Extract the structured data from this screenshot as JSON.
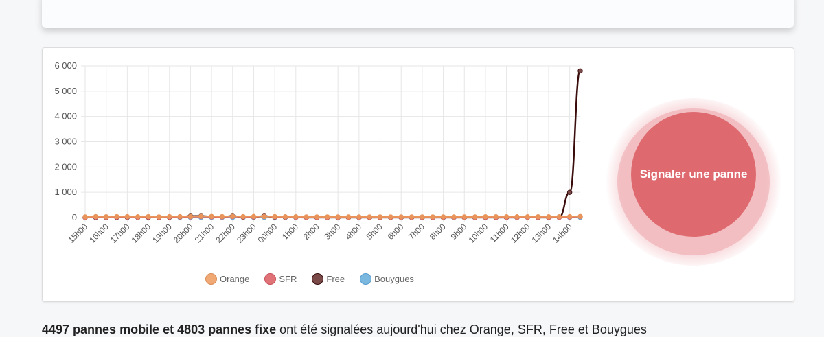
{
  "summary": {
    "bold": "4497 pannes mobile et 4803 pannes fixe",
    "rest": " ont été signalées aujourd'hui chez Orange, SFR, Free et Bouygues"
  },
  "button": {
    "label": "Signaler une panne"
  },
  "legend": [
    {
      "label": "Orange",
      "color": "#f0a875",
      "border": "#d98c55"
    },
    {
      "label": "SFR",
      "color": "#e07378",
      "border": "#c65058"
    },
    {
      "label": "Free",
      "color": "#7a4a48",
      "border": "#3a1010"
    },
    {
      "label": "Bouygues",
      "color": "#7ab8e0",
      "border": "#5a9ccc"
    }
  ],
  "chart_data": {
    "type": "line",
    "title": "",
    "xlabel": "",
    "ylabel": "",
    "ylim": [
      0,
      6000
    ],
    "yticks": [
      "0",
      "1 000",
      "2 000",
      "3 000",
      "4 000",
      "5 000",
      "6 000"
    ],
    "x_tick_labels": [
      "15h00",
      "16h00",
      "17h00",
      "18h00",
      "19h00",
      "20h00",
      "21h00",
      "22h00",
      "23h00",
      "00h00",
      "1h00",
      "2h00",
      "3h00",
      "4h00",
      "5h00",
      "6h00",
      "7h00",
      "8h00",
      "9h00",
      "10h00",
      "11h00",
      "12h00",
      "13h00",
      "14h00"
    ],
    "x": [
      "15h00",
      "15h30",
      "16h00",
      "16h30",
      "17h00",
      "17h30",
      "18h00",
      "18h30",
      "19h00",
      "19h30",
      "20h00",
      "20h30",
      "21h00",
      "21h30",
      "22h00",
      "22h30",
      "23h00",
      "23h30",
      "00h00",
      "00h30",
      "1h00",
      "1h30",
      "2h00",
      "2h30",
      "3h00",
      "3h30",
      "4h00",
      "4h30",
      "5h00",
      "5h30",
      "6h00",
      "6h30",
      "7h00",
      "7h30",
      "8h00",
      "8h30",
      "9h00",
      "9h30",
      "10h00",
      "10h30",
      "11h00",
      "11h30",
      "12h00",
      "12h30",
      "13h00",
      "13h30",
      "14h00",
      "14h30"
    ],
    "series": [
      {
        "name": "Orange",
        "color": "#e8945a",
        "values": [
          30,
          40,
          35,
          40,
          40,
          35,
          40,
          30,
          40,
          40,
          45,
          50,
          45,
          40,
          50,
          40,
          45,
          40,
          40,
          35,
          35,
          30,
          30,
          30,
          30,
          30,
          30,
          30,
          30,
          30,
          30,
          30,
          30,
          30,
          30,
          30,
          30,
          30,
          35,
          35,
          35,
          35,
          35,
          35,
          35,
          35,
          40,
          45
        ]
      },
      {
        "name": "SFR",
        "color": "#d8606a",
        "values": [
          10,
          20,
          15,
          20,
          20,
          15,
          20,
          15,
          20,
          25,
          30,
          40,
          30,
          25,
          40,
          25,
          25,
          45,
          25,
          20,
          15,
          10,
          10,
          10,
          10,
          10,
          10,
          10,
          10,
          10,
          10,
          10,
          10,
          10,
          10,
          10,
          10,
          10,
          10,
          10,
          10,
          10,
          15,
          10,
          10,
          10,
          20,
          40
        ]
      },
      {
        "name": "Free",
        "color": "#3a0c0c",
        "values": [
          5,
          10,
          8,
          10,
          10,
          8,
          10,
          8,
          15,
          25,
          60,
          60,
          40,
          30,
          60,
          20,
          25,
          60,
          20,
          15,
          10,
          5,
          5,
          5,
          5,
          5,
          5,
          5,
          5,
          5,
          5,
          5,
          5,
          5,
          5,
          5,
          5,
          5,
          5,
          5,
          5,
          5,
          20,
          5,
          5,
          10,
          1000,
          5800
        ]
      },
      {
        "name": "Bouygues",
        "color": "#6aa8d8",
        "values": [
          5,
          5,
          5,
          5,
          5,
          5,
          5,
          5,
          5,
          5,
          5,
          5,
          5,
          5,
          5,
          5,
          5,
          5,
          5,
          5,
          5,
          5,
          5,
          5,
          5,
          5,
          5,
          5,
          5,
          5,
          5,
          5,
          5,
          5,
          5,
          5,
          5,
          5,
          5,
          5,
          5,
          5,
          5,
          5,
          5,
          5,
          5,
          10
        ]
      }
    ],
    "grid": true,
    "legend_position": "bottom"
  }
}
